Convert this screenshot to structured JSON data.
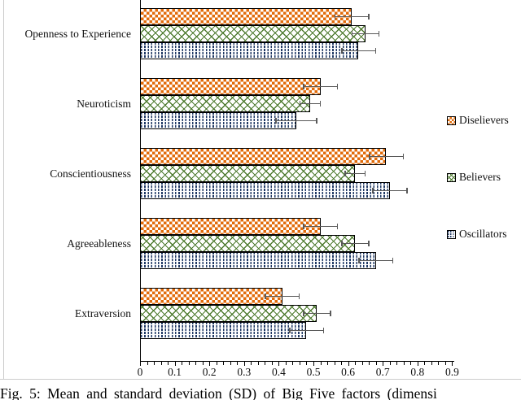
{
  "figure": {
    "caption": "Fig. 5: Mean and standard deviation (SD) of Big Five factors (dimensi"
  },
  "chart_data": {
    "type": "bar",
    "orientation": "horizontal",
    "title": "",
    "xlabel": "",
    "ylabel": "",
    "xlim": [
      0,
      0.9
    ],
    "xtick_interval": 0.1,
    "minor_tick_interval": 0.02,
    "grid": false,
    "legend_position": "right",
    "error_bars": true,
    "error_bar_color": "#595959",
    "categories": [
      "Openness to Experience",
      "Neuroticism",
      "Conscientiousness",
      "Agreeableness",
      "Extraversion"
    ],
    "xticklabels": [
      "0",
      "0.1",
      "0.2",
      "0.3",
      "0.4",
      "0.5",
      "0.6",
      "0.7",
      "0.8",
      "0.9"
    ],
    "series": [
      {
        "name": "Diselievers",
        "pattern": "orange-checkerboard",
        "color": "#E26B0A",
        "means": [
          0.61,
          0.52,
          0.71,
          0.52,
          0.41
        ],
        "sds": [
          0.05,
          0.05,
          0.05,
          0.05,
          0.05
        ]
      },
      {
        "name": "Believers",
        "pattern": "green-crosshatch",
        "color": "#4E7B2F",
        "means": [
          0.65,
          0.49,
          0.62,
          0.62,
          0.51
        ],
        "sds": [
          0.04,
          0.03,
          0.03,
          0.04,
          0.04
        ]
      },
      {
        "name": "Oscillators",
        "pattern": "navy-dashed-dots",
        "color": "#1F3864",
        "means": [
          0.63,
          0.45,
          0.72,
          0.68,
          0.48
        ],
        "sds": [
          0.05,
          0.06,
          0.05,
          0.05,
          0.05
        ]
      }
    ]
  }
}
